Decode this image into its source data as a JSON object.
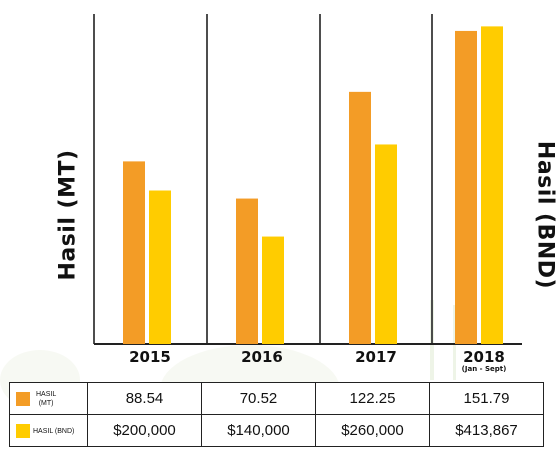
{
  "chart_data": {
    "type": "bar",
    "categories": [
      "2015",
      "2016",
      "2017",
      "2018"
    ],
    "category_sublabels": [
      "",
      "",
      "",
      "(Jan - Sept)"
    ],
    "series": [
      {
        "name": "HASIL (MT)",
        "values": [
          88.54,
          70.52,
          122.25,
          151.79
        ],
        "color": "#F39C26",
        "axis": "left"
      },
      {
        "name": "HASIL (BND)",
        "values": [
          200000,
          140000,
          260000,
          413867
        ],
        "color": "#FFCC00",
        "axis": "right"
      }
    ],
    "ylabel_left": "Hasil (MT)",
    "ylabel_right": "Hasil (BND)",
    "ylim_left": [
      0,
      160
    ],
    "ylim_right": [
      0,
      430000
    ],
    "grid": false,
    "table": {
      "rows": [
        {
          "label": "HASIL (MT)",
          "label_lines": [
            "HASIL",
            "(MT)"
          ],
          "values": [
            "88.54",
            "70.52",
            "122.25",
            "151.79"
          ]
        },
        {
          "label": "HASIL (BND)",
          "label_lines": [
            "HASIL (BND)"
          ],
          "values": [
            "$200,000",
            "$140,000",
            "$260,000",
            "$413,867"
          ]
        }
      ]
    }
  }
}
